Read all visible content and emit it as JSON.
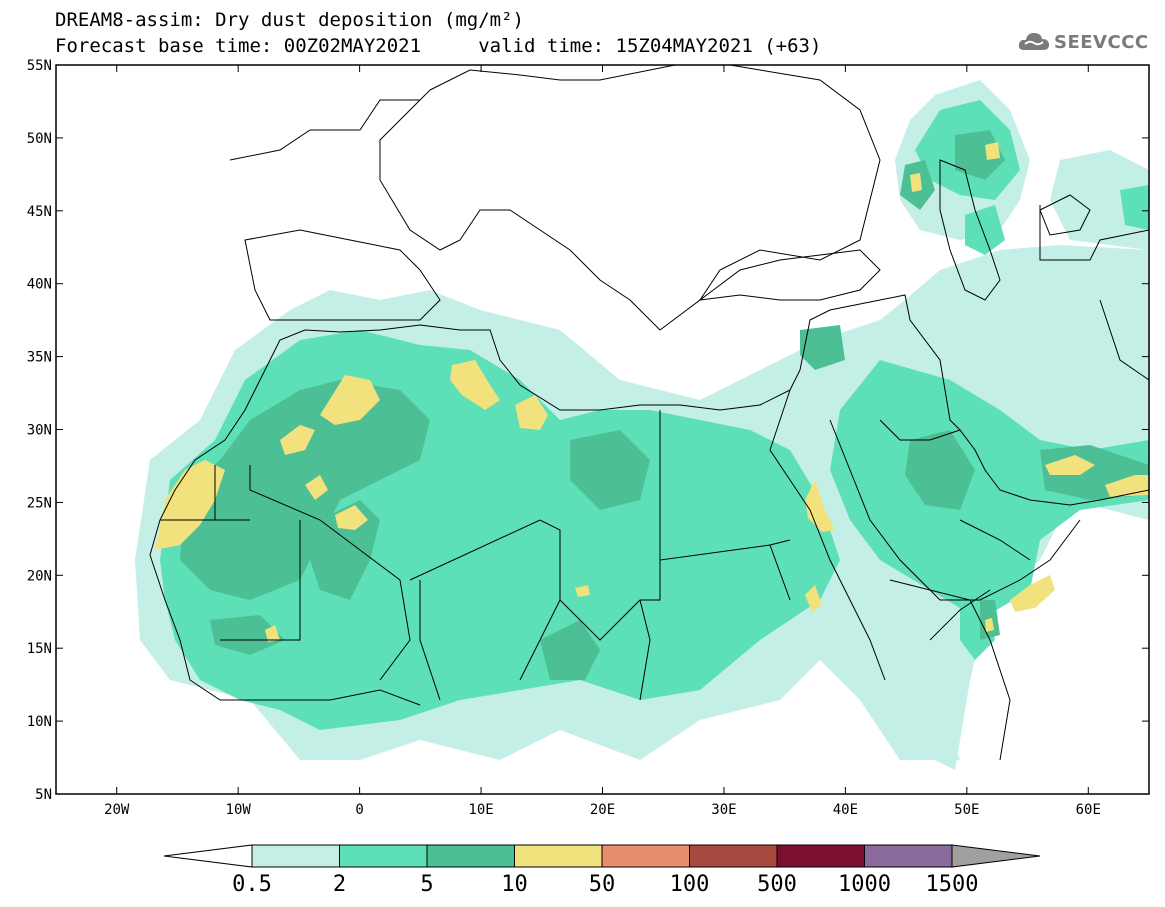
{
  "header": {
    "title_line1": "DREAM8-assim: Dry dust deposition (mg/m²)",
    "title_line2": "Forecast base time: 00Z02MAY2021     valid time: 15Z04MAY2021 (+63)",
    "logo_text": "SEEVCCC"
  },
  "map": {
    "lon_range": [
      -25,
      65
    ],
    "lat_range": [
      5,
      55
    ],
    "lat_ticks": [
      "55N",
      "50N",
      "45N",
      "40N",
      "35N",
      "30N",
      "25N",
      "20N",
      "15N",
      "10N",
      "5N"
    ],
    "lon_ticks": [
      "20W",
      "10W",
      "0",
      "10E",
      "20E",
      "30E",
      "40E",
      "50E",
      "60E"
    ],
    "tick_values_lat": [
      55,
      50,
      45,
      40,
      35,
      30,
      25,
      20,
      15,
      10,
      5
    ],
    "tick_values_lon": [
      -20,
      -10,
      0,
      10,
      20,
      30,
      40,
      50,
      60
    ]
  },
  "legend": {
    "labels": [
      "0.5",
      "2",
      "5",
      "10",
      "50",
      "100",
      "500",
      "1000",
      "1500"
    ],
    "colors": [
      "#c3efe7",
      "#5ddfb8",
      "#4dbf94",
      "#f1e27e",
      "#e98e6c",
      "#a84a3f",
      "#7a0f2f",
      "#8a6a9c",
      "#a0a0a0"
    ]
  },
  "colors": {
    "level1": "#c3efe7",
    "level2": "#5ddfb8",
    "level3": "#4dbf94",
    "level4": "#f1e27e"
  }
}
